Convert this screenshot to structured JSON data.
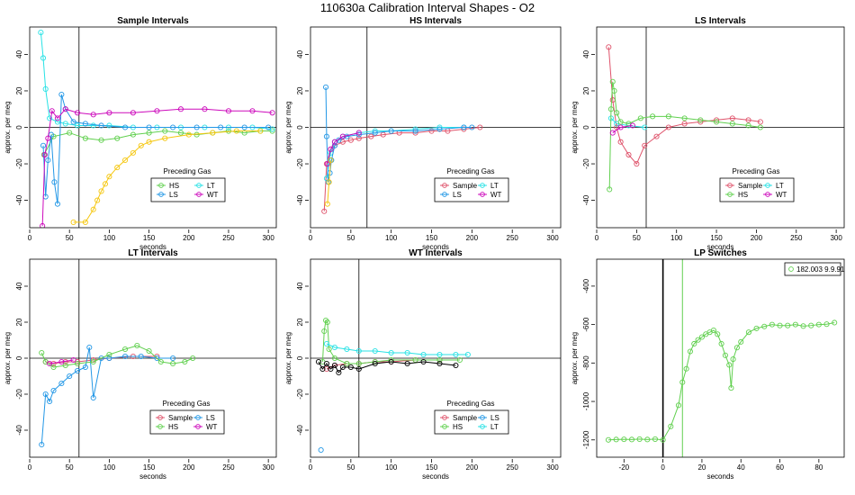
{
  "title": "110630a   Calibration Interval Shapes - O2",
  "colors": {
    "red": "#DF536B",
    "green": "#61D04F",
    "blue": "#2297E6",
    "cyan": "#28E2E5",
    "magenta": "#CD0BBC",
    "gold": "#F5C710",
    "black": "#000000"
  },
  "chart_data": [
    {
      "type": "scatter",
      "title": "Sample Intervals",
      "xlabel": "seconds",
      "ylabel": "approx. per meg",
      "xlim": [
        0,
        310
      ],
      "ylim": [
        -55,
        55
      ],
      "xticks": [
        0,
        50,
        100,
        150,
        200,
        250,
        300
      ],
      "xtick_labels": [
        "0",
        "50",
        "100",
        "150",
        "200",
        "250",
        "300"
      ],
      "yticks": [
        -40,
        -20,
        0,
        20,
        40
      ],
      "ytick_labels": [
        "-40",
        "-20",
        "0",
        "20",
        "40"
      ],
      "vline": 62,
      "legend_title": "Preceding Gas",
      "legend": [
        {
          "label": "HS",
          "color": "#61D04F"
        },
        {
          "label": "LT",
          "color": "#28E2E5"
        },
        {
          "label": "LS",
          "color": "#2297E6"
        },
        {
          "label": "WT",
          "color": "#CD0BBC"
        }
      ],
      "series": [
        {
          "name": "HS",
          "color": "#61D04F",
          "x": [
            18,
            30,
            50,
            70,
            90,
            110,
            130,
            150,
            170,
            190,
            210,
            230,
            250,
            270,
            290,
            305
          ],
          "y": [
            -15,
            -5,
            -3,
            -6,
            -7,
            -6,
            -4,
            -3,
            -2,
            -3,
            -4,
            -3,
            -2,
            -3,
            -2,
            -2
          ]
        },
        {
          "name": "LT",
          "color": "#28E2E5",
          "x": [
            14,
            17,
            20,
            25,
            35,
            45,
            60,
            80,
            100,
            130,
            160,
            190,
            220,
            250,
            280,
            305
          ],
          "y": [
            52,
            38,
            21,
            5,
            3,
            2,
            1,
            1,
            1,
            0,
            0,
            0,
            0,
            0,
            0,
            -1
          ]
        },
        {
          "name": "LS",
          "color": "#2297E6",
          "x": [
            17,
            20,
            23,
            27,
            31,
            35,
            40,
            45,
            55,
            70,
            90,
            120,
            150,
            180,
            210,
            240,
            270,
            300
          ],
          "y": [
            -10,
            -38,
            -18,
            -4,
            -30,
            -42,
            18,
            10,
            3,
            2,
            1,
            0,
            0,
            0,
            0,
            0,
            0,
            0
          ]
        },
        {
          "name": "WT",
          "color": "#CD0BBC",
          "x": [
            16,
            19,
            23,
            28,
            35,
            45,
            60,
            80,
            100,
            130,
            160,
            190,
            220,
            250,
            280,
            305
          ],
          "y": [
            -54,
            -15,
            -6,
            9,
            5,
            10,
            8,
            7,
            8,
            8,
            9,
            10,
            10,
            9,
            9,
            8
          ]
        },
        {
          "name": "gold",
          "color": "#F5C710",
          "x": [
            55,
            70,
            80,
            85,
            90,
            95,
            100,
            110,
            120,
            130,
            140,
            150,
            170,
            200,
            230,
            260,
            290
          ],
          "y": [
            -52,
            -52,
            -45,
            -40,
            -35,
            -31,
            -27,
            -22,
            -18,
            -14,
            -10,
            -8,
            -6,
            -4,
            -3,
            -2,
            -2
          ]
        }
      ]
    },
    {
      "type": "scatter",
      "title": "HS Intervals",
      "xlabel": "seconds",
      "ylabel": "approx. per meg",
      "xlim": [
        0,
        310
      ],
      "ylim": [
        -55,
        55
      ],
      "xticks": [
        0,
        50,
        100,
        150,
        200,
        250,
        300
      ],
      "xtick_labels": [
        "0",
        "50",
        "100",
        "150",
        "200",
        "250",
        "300"
      ],
      "yticks": [
        -40,
        -20,
        0,
        20,
        40
      ],
      "ytick_labels": [
        "-40",
        "-20",
        "0",
        "20",
        "40"
      ],
      "vline": 70,
      "legend_title": "Preceding Gas",
      "legend": [
        {
          "label": "Sample",
          "color": "#DF536B"
        },
        {
          "label": "LT",
          "color": "#28E2E5"
        },
        {
          "label": "LS",
          "color": "#2297E6"
        },
        {
          "label": "WT",
          "color": "#CD0BBC"
        }
      ],
      "series": [
        {
          "name": "Sample",
          "color": "#DF536B",
          "x": [
            17,
            20,
            25,
            30,
            40,
            50,
            60,
            75,
            90,
            110,
            130,
            150,
            170,
            190,
            210
          ],
          "y": [
            -46,
            -20,
            -12,
            -10,
            -8,
            -7,
            -6,
            -5,
            -4,
            -3,
            -3,
            -2,
            -2,
            -1,
            0
          ]
        },
        {
          "name": "LT",
          "color": "#28E2E5",
          "x": [
            20,
            25,
            30,
            40,
            60,
            80,
            100,
            130,
            160,
            190
          ],
          "y": [
            -28,
            -14,
            -8,
            -5,
            -3,
            -2,
            -2,
            -1,
            0,
            0
          ]
        },
        {
          "name": "LS",
          "color": "#2297E6",
          "x": [
            19,
            20,
            22,
            24,
            26,
            30,
            35,
            45,
            60,
            80,
            100,
            130,
            160,
            190,
            200
          ],
          "y": [
            22,
            -5,
            -30,
            -25,
            -18,
            -10,
            -7,
            -5,
            -4,
            -3,
            -2,
            -2,
            -1,
            0,
            0
          ]
        },
        {
          "name": "WT",
          "color": "#CD0BBC",
          "x": [
            21,
            25,
            30,
            40,
            60
          ],
          "y": [
            -20,
            -12,
            -8,
            -5,
            -3
          ]
        },
        {
          "name": "gold",
          "color": "#F5C710",
          "x": [
            21,
            23,
            25
          ],
          "y": [
            -42,
            -30,
            -18
          ]
        }
      ]
    },
    {
      "type": "scatter",
      "title": "LS Intervals",
      "xlabel": "seconds",
      "ylabel": "approx. per meg",
      "xlim": [
        0,
        310
      ],
      "ylim": [
        -55,
        55
      ],
      "xticks": [
        0,
        50,
        100,
        150,
        200,
        250,
        300
      ],
      "xtick_labels": [
        "0",
        "50",
        "100",
        "150",
        "200",
        "250",
        "300"
      ],
      "yticks": [
        -40,
        -20,
        0,
        20,
        40
      ],
      "ytick_labels": [
        "-40",
        "-20",
        "0",
        "20",
        "40"
      ],
      "vline": 62,
      "legend_title": "Preceding Gas",
      "legend": [
        {
          "label": "Sample",
          "color": "#DF536B"
        },
        {
          "label": "LT",
          "color": "#28E2E5"
        },
        {
          "label": "HS",
          "color": "#61D04F"
        },
        {
          "label": "WT",
          "color": "#CD0BBC"
        }
      ],
      "series": [
        {
          "name": "Sample",
          "color": "#DF536B",
          "x": [
            15,
            20,
            25,
            30,
            40,
            50,
            60,
            75,
            90,
            110,
            130,
            150,
            170,
            190,
            205
          ],
          "y": [
            44,
            15,
            0,
            -8,
            -15,
            -20,
            -10,
            -5,
            0,
            2,
            3,
            4,
            5,
            4,
            3
          ]
        },
        {
          "name": "LT",
          "color": "#28E2E5",
          "x": [
            18,
            25,
            40,
            60
          ],
          "y": [
            5,
            2,
            1,
            0
          ]
        },
        {
          "name": "HS",
          "color": "#61D04F",
          "x": [
            16,
            18,
            20,
            22,
            25,
            30,
            40,
            55,
            70,
            90,
            110,
            130,
            150,
            170,
            190,
            205
          ],
          "y": [
            -34,
            10,
            25,
            20,
            8,
            3,
            2,
            5,
            6,
            6,
            5,
            4,
            3,
            2,
            1,
            0
          ]
        },
        {
          "name": "WT",
          "color": "#CD0BBC",
          "x": [
            20,
            30,
            45
          ],
          "y": [
            -3,
            0,
            1
          ]
        }
      ]
    },
    {
      "type": "scatter",
      "title": "LT Intervals",
      "xlabel": "seconds",
      "ylabel": "approx. per meg",
      "xlim": [
        0,
        310
      ],
      "ylim": [
        -55,
        55
      ],
      "xticks": [
        0,
        50,
        100,
        150,
        200,
        250,
        300
      ],
      "xtick_labels": [
        "0",
        "50",
        "100",
        "150",
        "200",
        "250",
        "300"
      ],
      "yticks": [
        -40,
        -20,
        0,
        20,
        40
      ],
      "ytick_labels": [
        "-40",
        "-20",
        "0",
        "20",
        "40"
      ],
      "vline": 62,
      "legend_title": "Preceding Gas",
      "legend": [
        {
          "label": "Sample",
          "color": "#DF536B"
        },
        {
          "label": "LS",
          "color": "#2297E6"
        },
        {
          "label": "HS",
          "color": "#61D04F"
        },
        {
          "label": "WT",
          "color": "#CD0BBC"
        }
      ],
      "series": [
        {
          "name": "Sample",
          "color": "#DF536B",
          "x": [
            20,
            30,
            45,
            60,
            80,
            100,
            130,
            160
          ],
          "y": [
            -2,
            -3,
            -2,
            -2,
            -1,
            0,
            1,
            1
          ]
        },
        {
          "name": "LS",
          "color": "#2297E6",
          "x": [
            15,
            20,
            25,
            30,
            40,
            50,
            60,
            70,
            75,
            80,
            90,
            100,
            120,
            140,
            160,
            180
          ],
          "y": [
            -48,
            -20,
            -24,
            -18,
            -14,
            -10,
            -7,
            -5,
            6,
            -22,
            0,
            0,
            1,
            1,
            0,
            0
          ]
        },
        {
          "name": "HS",
          "color": "#61D04F",
          "x": [
            15,
            20,
            30,
            45,
            60,
            80,
            100,
            120,
            135,
            150,
            165,
            180,
            195,
            205
          ],
          "y": [
            3,
            -2,
            -5,
            -4,
            -3,
            -2,
            2,
            5,
            7,
            4,
            -2,
            -3,
            -2,
            0
          ]
        },
        {
          "name": "WT",
          "color": "#CD0BBC",
          "x": [
            25,
            40,
            55
          ],
          "y": [
            -3,
            -2,
            -1
          ]
        }
      ]
    },
    {
      "type": "scatter",
      "title": "WT Intervals",
      "xlabel": "seconds",
      "ylabel": "approx. per meg",
      "xlim": [
        0,
        310
      ],
      "ylim": [
        -55,
        55
      ],
      "xticks": [
        0,
        50,
        100,
        150,
        200,
        250,
        300
      ],
      "xtick_labels": [
        "0",
        "50",
        "100",
        "150",
        "200",
        "250",
        "300"
      ],
      "yticks": [
        -40,
        -20,
        0,
        20,
        40
      ],
      "ytick_labels": [
        "-40",
        "-20",
        "0",
        "20",
        "40"
      ],
      "vline": 60,
      "legend_title": "Preceding Gas",
      "legend": [
        {
          "label": "Sample",
          "color": "#DF536B"
        },
        {
          "label": "LS",
          "color": "#2297E6"
        },
        {
          "label": "HS",
          "color": "#61D04F"
        },
        {
          "label": "LT",
          "color": "#28E2E5"
        }
      ],
      "series": [
        {
          "name": "Sample",
          "color": "#DF536B",
          "x": [
            20,
            30,
            45,
            60,
            80,
            100,
            130,
            160
          ],
          "y": [
            -6,
            -4,
            -3,
            -3,
            -2,
            -2,
            -1,
            -1
          ]
        },
        {
          "name": "LS",
          "color": "#2297E6",
          "x": [
            13
          ],
          "y": [
            -51
          ]
        },
        {
          "name": "HS",
          "color": "#61D04F",
          "x": [
            15,
            17,
            19,
            21,
            23,
            30,
            45,
            60,
            80,
            100,
            130,
            160,
            185
          ],
          "y": [
            -2,
            15,
            21,
            20,
            5,
            0,
            -3,
            -3,
            -2,
            -1,
            -1,
            -1,
            -1
          ]
        },
        {
          "name": "LT",
          "color": "#28E2E5",
          "x": [
            20,
            30,
            45,
            60,
            80,
            100,
            120,
            140,
            160,
            180,
            195
          ],
          "y": [
            8,
            6,
            5,
            4,
            4,
            3,
            3,
            2,
            2,
            2,
            2
          ]
        },
        {
          "name": "black",
          "color": "#000000",
          "x": [
            10,
            15,
            20,
            25,
            30,
            35,
            40,
            50,
            60,
            80,
            100,
            120,
            140,
            160,
            180
          ],
          "y": [
            -2,
            -6,
            -3,
            -6,
            -4,
            -8,
            -5,
            -5,
            -6,
            -3,
            -2,
            -3,
            -2,
            -3,
            -4
          ]
        }
      ]
    },
    {
      "type": "scatter",
      "title": "LP Switches",
      "xlabel": "seconds",
      "ylabel": "approx. per meg",
      "xlim": [
        -34,
        93
      ],
      "ylim": [
        -1290,
        -260
      ],
      "xticks": [
        -20,
        0,
        20,
        40,
        60,
        80
      ],
      "xtick_labels": [
        "-20",
        "0",
        "20",
        "40",
        "60",
        "80"
      ],
      "yticks": [
        -1200,
        -1000,
        -800,
        -600,
        -400
      ],
      "ytick_labels": [
        "-1200",
        "-1000",
        "-800",
        "-600",
        "-400"
      ],
      "vline": 0,
      "vline2": 10,
      "legend": [
        {
          "label": "182.003 9.9.91",
          "color": "#61D04F"
        }
      ],
      "series": [
        {
          "name": "182.003 9.9.91",
          "color": "#61D04F",
          "x": [
            -28,
            -24,
            -20,
            -16,
            -12,
            -8,
            -4,
            0,
            4,
            8,
            10,
            12,
            14,
            16,
            18,
            20,
            22,
            24,
            26,
            28,
            30,
            32,
            34,
            35,
            36,
            38,
            40,
            44,
            48,
            52,
            56,
            60,
            64,
            68,
            72,
            76,
            80,
            84,
            88
          ],
          "y": [
            -1200,
            -1198,
            -1197,
            -1198,
            -1196,
            -1198,
            -1196,
            -1200,
            -1130,
            -1020,
            -900,
            -830,
            -740,
            -700,
            -680,
            -665,
            -650,
            -640,
            -630,
            -650,
            -700,
            -760,
            -810,
            -930,
            -780,
            -720,
            -690,
            -640,
            -620,
            -610,
            -600,
            -605,
            -605,
            -600,
            -608,
            -605,
            -600,
            -598,
            -590
          ]
        }
      ]
    }
  ]
}
